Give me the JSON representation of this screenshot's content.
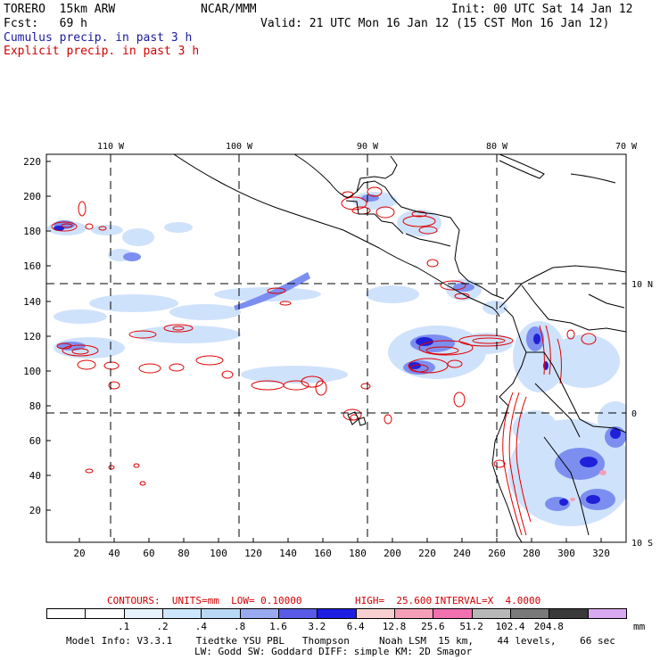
{
  "header": {
    "model": "TORERO  15km ARW",
    "org": "NCAR/MMM",
    "init": "Init: 00 UTC Sat 14 Jan 12",
    "fcst": "Fcst:   69 h",
    "valid": "Valid: 21 UTC Mon 16 Jan 12 (15 CST Mon 16 Jan 12)",
    "field1": "Cumulus precip. in past 3 h",
    "field2": "Explicit precip. in past 3 h",
    "field1_color": "#1a1aa0",
    "field2_color": "#d00000"
  },
  "axes": {
    "top_lon_labels": [
      "110 W",
      "100 W",
      "90 W",
      "80 W",
      "70 W"
    ],
    "right_lat_labels": [
      "10 N",
      "0",
      "10 S"
    ],
    "left_y_ticks": [
      "220",
      "200",
      "180",
      "160",
      "140",
      "120",
      "100",
      "80",
      "60",
      "40",
      "20"
    ],
    "bottom_x_ticks": [
      "20",
      "40",
      "60",
      "80",
      "100",
      "120",
      "140",
      "160",
      "180",
      "200",
      "220",
      "240",
      "260",
      "280",
      "300",
      "320"
    ]
  },
  "contour_info": {
    "contours": "CONTOURS:  UNITS=mm  LOW= 0.10000",
    "high": "HIGH=  25.600",
    "interval": "INTERVAL=X  4.0000"
  },
  "colorbar": {
    "colors": [
      "#ffffff",
      "#ffffff",
      "#e6f2ff",
      "#cce6ff",
      "#b8d8f5",
      "#9aaaf0",
      "#5a5ae8",
      "#1e1ee0",
      "#f8d0d0",
      "#f5a0b8",
      "#f070b0",
      "#b8b8b8",
      "#7a7a7a",
      "#3a3a3a",
      "#d8a8f0"
    ],
    "labels": [
      ".1",
      ".2",
      ".4",
      ".8",
      "1.6",
      "3.2",
      "6.4",
      "12.8",
      "25.6",
      "51.2",
      "102.4",
      "204.8"
    ],
    "unit": "mm"
  },
  "footer": {
    "line1": "Model Info: V3.3.1    Tiedtke YSU PBL   Thompson     Noah LSM  15 km,    44 levels,    66 sec",
    "line2": "LW: Godd SW: Goddard DIFF: simple KM: 2D Smagor"
  }
}
